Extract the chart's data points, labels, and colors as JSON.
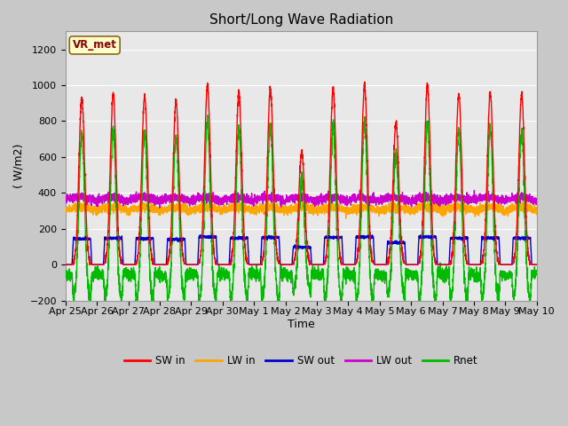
{
  "title": "Short/Long Wave Radiation",
  "xlabel": "Time",
  "ylabel": "( W/m2)",
  "ylim": [
    -200,
    1300
  ],
  "yticks": [
    -200,
    0,
    200,
    400,
    600,
    800,
    1000,
    1200
  ],
  "annotation": "VR_met",
  "annotation_color": "#8b0000",
  "annotation_bg": "#ffffcc",
  "annotation_border": "#8b6914",
  "colors": {
    "SW_in": "#ff0000",
    "LW_in": "#ffa500",
    "SW_out": "#0000cd",
    "LW_out": "#cc00cc",
    "Rnet": "#00bb00"
  },
  "legend_labels": [
    "SW in",
    "LW in",
    "SW out",
    "LW out",
    "Rnet"
  ],
  "n_days": 15,
  "x_tick_labels": [
    "Apr 25",
    "Apr 26",
    "Apr 27",
    "Apr 28",
    "Apr 29",
    "Apr 30",
    "May 1",
    "May 2",
    "May 3",
    "May 4",
    "May 5",
    "May 6",
    "May 7",
    "May 8",
    "May 9",
    "May 10"
  ],
  "line_width": 1.0,
  "fig_facecolor": "#c8c8c8",
  "ax_facecolor": "#e8e8e8",
  "grid_color": "#ffffff"
}
